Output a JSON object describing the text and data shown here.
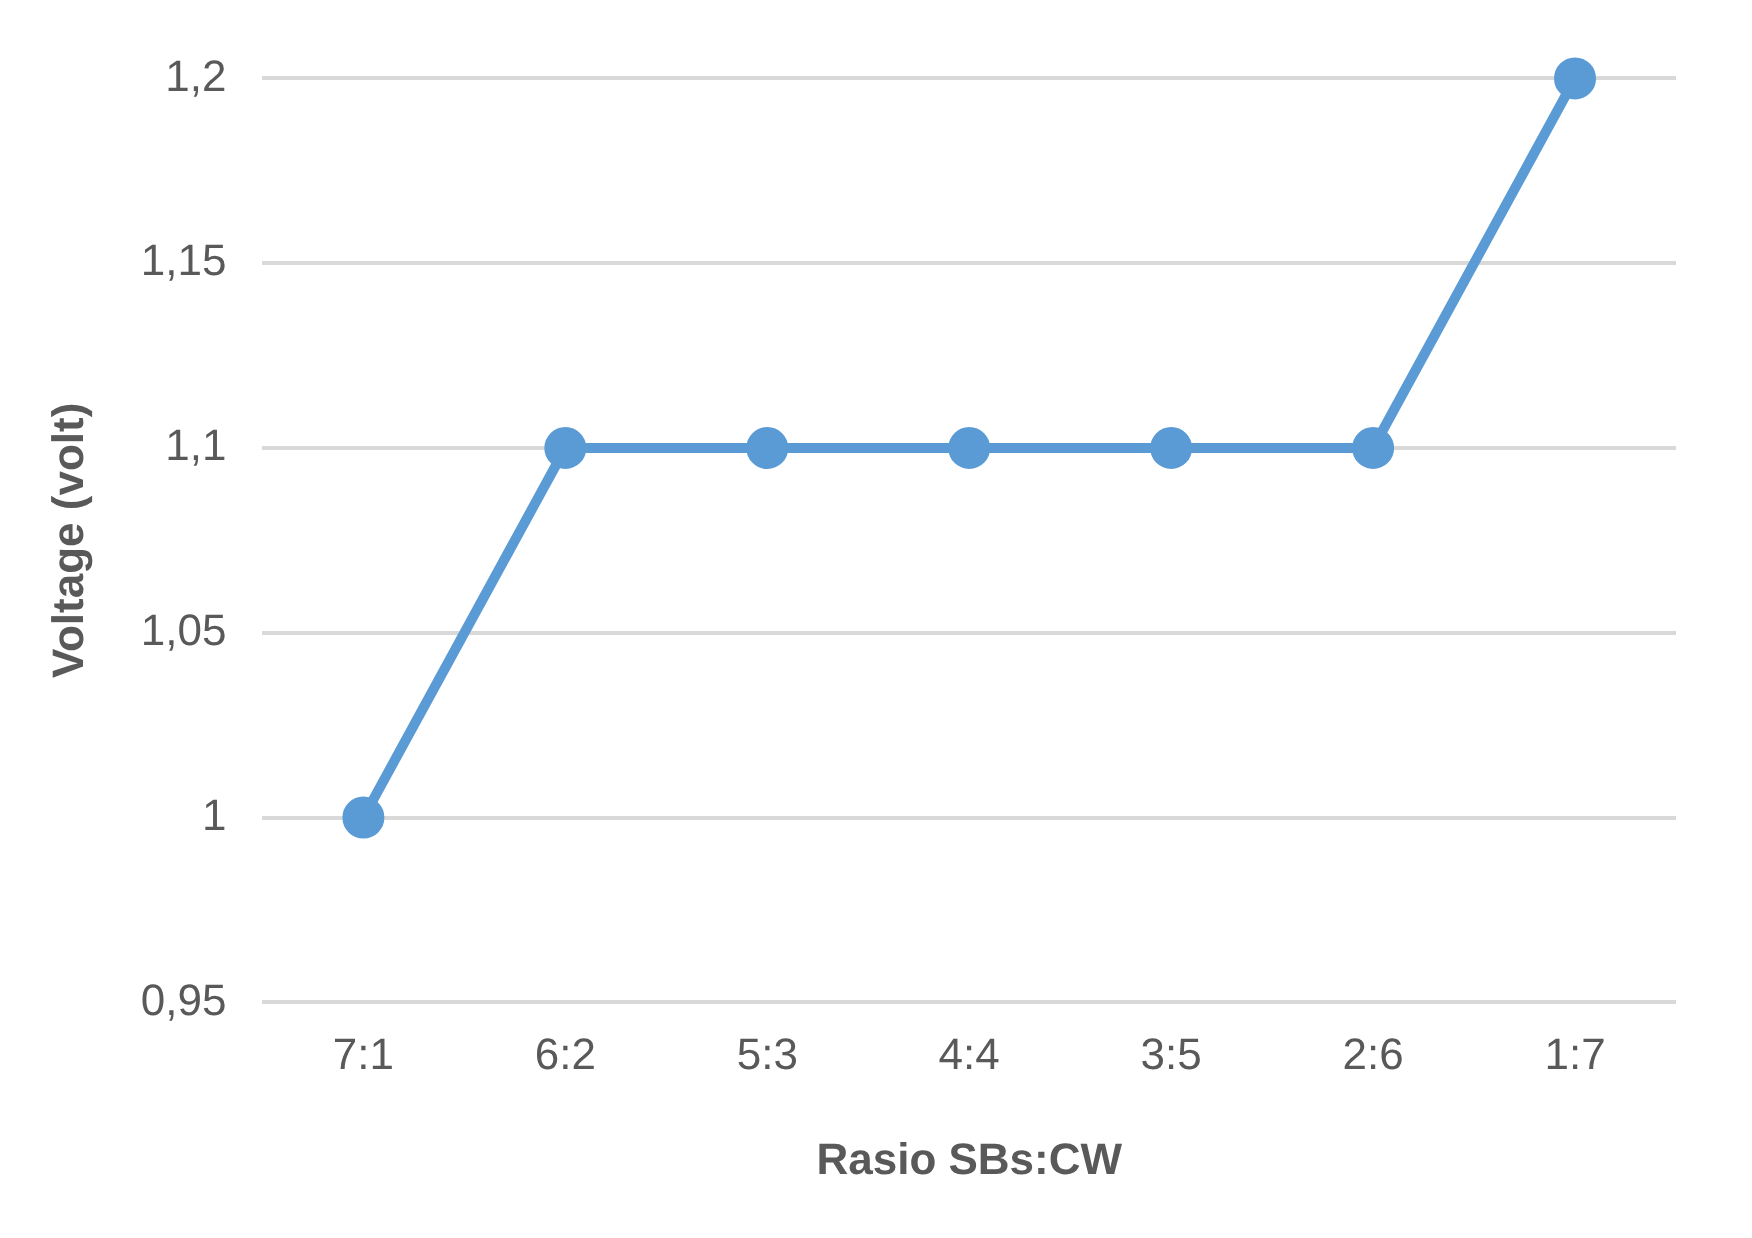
{
  "chart_data": {
    "type": "line",
    "xlabel": "Rasio SBs:CW",
    "ylabel": "Voltage (volt)",
    "categories": [
      "7:1",
      "6:2",
      "5:3",
      "4:4",
      "3:5",
      "2:6",
      "1:7"
    ],
    "series": [
      {
        "color": "#5b9bd5",
        "values": [
          1,
          1.1,
          1.1,
          1.1,
          1.1,
          1.1,
          1.2
        ]
      }
    ],
    "ylim": [
      0.95,
      1.2
    ],
    "yticks": [
      {
        "value": 0.95,
        "label": "0,95"
      },
      1,
      {
        "value": 1.05,
        "label": "1,05"
      },
      {
        "value": 1.1,
        "label": "1,1"
      },
      {
        "value": 1.15,
        "label": "1,15"
      },
      {
        "value": 1.2,
        "label": "1,2"
      }
    ],
    "grid": "y",
    "legend": false,
    "marker": "circle",
    "line_style": "solid"
  }
}
